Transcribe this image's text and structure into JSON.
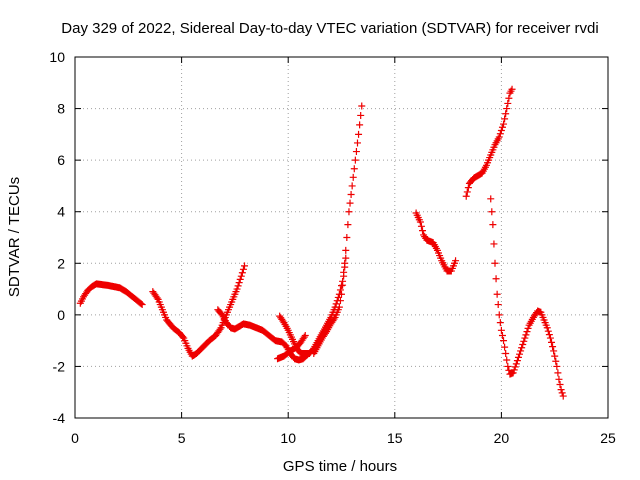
{
  "chart_data": {
    "type": "scatter",
    "title": "Day 329 of 2022, Sidereal Day-to-day VTEC variation (SDTVAR) for receiver rvdi",
    "xlabel": "GPS time / hours",
    "ylabel": "SDTVAR / TECUs",
    "xlim": [
      0,
      25
    ],
    "ylim": [
      -4,
      10
    ],
    "xticks": [
      0,
      5,
      10,
      15,
      20,
      25
    ],
    "yticks": [
      -4,
      -2,
      0,
      2,
      4,
      6,
      8,
      10
    ],
    "grid": true,
    "marker": "+",
    "color": "#ee0000",
    "series": [
      {
        "name": "rvdi",
        "segments": [
          [
            [
              0.25,
              0.45
            ],
            [
              0.4,
              0.7
            ],
            [
              0.6,
              0.95
            ],
            [
              0.8,
              1.1
            ],
            [
              1.0,
              1.2
            ],
            [
              1.2,
              1.18
            ],
            [
              1.5,
              1.15
            ],
            [
              1.8,
              1.1
            ],
            [
              2.1,
              1.05
            ],
            [
              2.4,
              0.9
            ],
            [
              2.7,
              0.7
            ],
            [
              3.0,
              0.5
            ],
            [
              3.15,
              0.4
            ]
          ],
          [
            [
              3.65,
              0.9
            ],
            [
              3.9,
              0.6
            ],
            [
              4.1,
              0.2
            ],
            [
              4.3,
              -0.2
            ],
            [
              4.6,
              -0.5
            ],
            [
              4.9,
              -0.7
            ],
            [
              5.1,
              -0.9
            ],
            [
              5.3,
              -1.3
            ],
            [
              5.5,
              -1.6
            ],
            [
              5.7,
              -1.5
            ],
            [
              6.0,
              -1.25
            ],
            [
              6.3,
              -1.0
            ],
            [
              6.6,
              -0.8
            ],
            [
              6.85,
              -0.5
            ],
            [
              7.0,
              -0.2
            ],
            [
              7.2,
              0.2
            ],
            [
              7.4,
              0.6
            ],
            [
              7.6,
              1.0
            ],
            [
              7.8,
              1.5
            ],
            [
              7.95,
              1.9
            ]
          ],
          [
            [
              6.7,
              0.2
            ],
            [
              6.9,
              0.0
            ],
            [
              7.1,
              -0.3
            ],
            [
              7.3,
              -0.5
            ],
            [
              7.5,
              -0.55
            ],
            [
              7.7,
              -0.45
            ],
            [
              7.9,
              -0.35
            ],
            [
              8.2,
              -0.4
            ],
            [
              8.5,
              -0.5
            ],
            [
              8.8,
              -0.6
            ],
            [
              9.1,
              -0.8
            ],
            [
              9.4,
              -1.0
            ],
            [
              9.7,
              -1.05
            ],
            [
              9.9,
              -1.2
            ],
            [
              10.1,
              -1.5
            ],
            [
              10.3,
              -1.7
            ],
            [
              10.5,
              -1.75
            ],
            [
              10.7,
              -1.7
            ],
            [
              10.9,
              -1.55
            ]
          ],
          [
            [
              9.5,
              -1.7
            ],
            [
              9.8,
              -1.6
            ],
            [
              10.1,
              -1.4
            ],
            [
              10.4,
              -1.25
            ],
            [
              10.6,
              -1.05
            ],
            [
              10.8,
              -0.8
            ]
          ],
          [
            [
              9.6,
              -0.05
            ],
            [
              9.8,
              -0.3
            ],
            [
              10.0,
              -0.6
            ],
            [
              10.2,
              -0.95
            ],
            [
              10.4,
              -1.3
            ],
            [
              10.6,
              -1.5
            ],
            [
              10.8,
              -1.5
            ],
            [
              11.0,
              -1.5
            ],
            [
              11.2,
              -1.3
            ],
            [
              11.4,
              -1.0
            ],
            [
              11.6,
              -0.7
            ],
            [
              11.8,
              -0.4
            ],
            [
              12.0,
              -0.1
            ],
            [
              12.2,
              0.3
            ],
            [
              12.4,
              0.8
            ],
            [
              12.55,
              1.3
            ],
            [
              12.65,
              2.0
            ],
            [
              12.75,
              3.0
            ],
            [
              12.85,
              4.0
            ],
            [
              13.0,
              5.0
            ],
            [
              13.15,
              6.0
            ],
            [
              13.3,
              7.0
            ],
            [
              13.45,
              8.1
            ]
          ],
          [
            [
              11.2,
              -1.5
            ],
            [
              11.4,
              -1.2
            ],
            [
              11.6,
              -0.9
            ],
            [
              11.8,
              -0.65
            ],
            [
              12.0,
              -0.35
            ],
            [
              12.2,
              -0.1
            ],
            [
              12.4,
              0.3
            ],
            [
              12.5,
              0.8
            ],
            [
              12.6,
              1.5
            ],
            [
              12.7,
              2.2
            ]
          ],
          [
            [
              16.0,
              3.95
            ],
            [
              16.2,
              3.6
            ],
            [
              16.35,
              3.1
            ],
            [
              16.5,
              2.9
            ],
            [
              16.8,
              2.8
            ],
            [
              17.0,
              2.5
            ],
            [
              17.2,
              2.1
            ],
            [
              17.45,
              1.7
            ],
            [
              17.65,
              1.7
            ],
            [
              17.85,
              2.1
            ]
          ],
          [
            [
              18.35,
              4.6
            ],
            [
              18.5,
              5.1
            ],
            [
              18.7,
              5.3
            ],
            [
              18.9,
              5.4
            ],
            [
              19.1,
              5.5
            ],
            [
              19.3,
              5.8
            ],
            [
              19.5,
              6.2
            ],
            [
              19.7,
              6.6
            ],
            [
              19.9,
              6.9
            ],
            [
              20.1,
              7.4
            ],
            [
              20.25,
              8.0
            ],
            [
              20.4,
              8.6
            ],
            [
              20.5,
              8.75
            ]
          ],
          [
            [
              19.5,
              4.5
            ],
            [
              19.6,
              3.5
            ],
            [
              19.7,
              2.0
            ],
            [
              19.8,
              0.8
            ],
            [
              19.9,
              0.0
            ],
            [
              20.0,
              -0.6
            ],
            [
              20.1,
              -1.0
            ],
            [
              20.2,
              -1.5
            ],
            [
              20.3,
              -2.0
            ],
            [
              20.4,
              -2.3
            ],
            [
              20.55,
              -2.25
            ],
            [
              20.7,
              -1.9
            ],
            [
              20.9,
              -1.4
            ],
            [
              21.1,
              -0.9
            ],
            [
              21.3,
              -0.4
            ],
            [
              21.5,
              -0.1
            ],
            [
              21.7,
              0.15
            ],
            [
              21.85,
              0.1
            ],
            [
              22.0,
              -0.2
            ],
            [
              22.15,
              -0.5
            ],
            [
              22.3,
              -0.9
            ],
            [
              22.45,
              -1.4
            ],
            [
              22.6,
              -2.0
            ],
            [
              22.7,
              -2.5
            ],
            [
              22.8,
              -2.9
            ],
            [
              22.9,
              -3.15
            ]
          ]
        ]
      }
    ]
  }
}
